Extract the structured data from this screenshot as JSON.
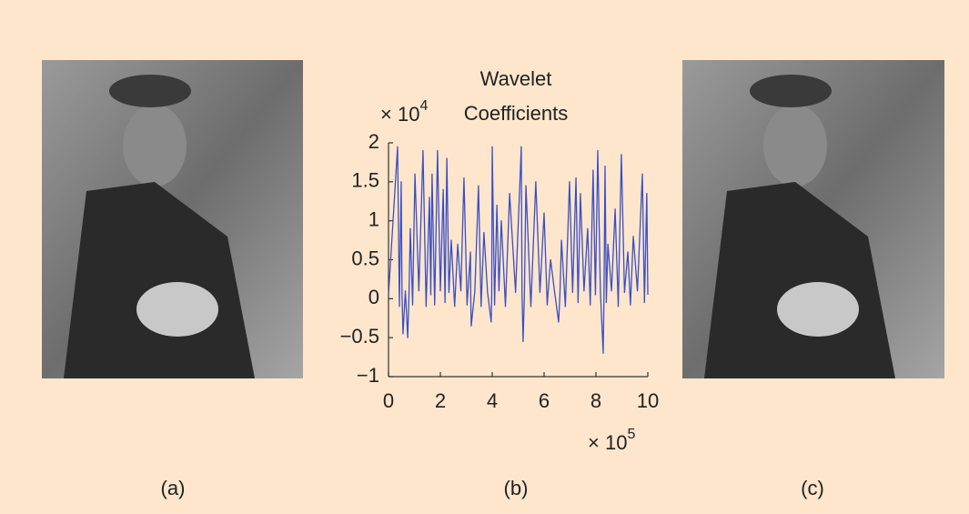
{
  "chart_data": {
    "type": "line",
    "title": [
      "Wavelet",
      "Coefficients"
    ],
    "x_multiplier": {
      "base": "× 10",
      "exponent": "5"
    },
    "y_multiplier": {
      "base": "× 10",
      "exponent": "4"
    },
    "xlim": [
      0,
      10
    ],
    "xticks": [
      0,
      2,
      4,
      6,
      8,
      10
    ],
    "ylim": [
      -1,
      2
    ],
    "yticks": [
      {
        "value": -1,
        "label": "−1"
      },
      {
        "value": -0.5,
        "label": "−0.5"
      },
      0,
      0.5,
      1,
      1.5,
      2
    ],
    "grid": false,
    "series": [
      {
        "color": "#3b4fc2",
        "x": [
          0,
          0.35,
          0.42,
          0.49,
          0.52,
          0.56,
          0.65,
          0.74,
          0.79,
          0.84,
          0.93,
          1.02,
          1.17,
          1.33,
          1.45,
          1.58,
          1.63,
          1.68,
          1.78,
          1.89,
          2.0,
          2.11,
          2.18,
          2.25,
          2.33,
          2.42,
          2.55,
          2.67,
          2.79,
          2.91,
          3.03,
          3.16,
          3.17,
          3.19,
          3.33,
          3.47,
          3.57,
          3.68,
          3.82,
          3.96,
          3.98,
          4.0,
          4.09,
          4.18,
          4.26,
          4.35,
          4.51,
          4.67,
          4.9,
          5.12,
          5.15,
          5.19,
          5.24,
          5.3,
          5.49,
          5.68,
          5.84,
          6.0,
          6.12,
          6.25,
          6.4,
          6.56,
          6.61,
          6.67,
          6.82,
          6.98,
          7.1,
          7.23,
          7.31,
          7.4,
          7.54,
          7.68,
          7.78,
          7.89,
          7.98,
          8.07,
          8.17,
          8.28,
          8.31,
          8.35,
          8.4,
          8.46,
          8.6,
          8.74,
          8.86,
          8.98,
          9.1,
          9.23,
          9.33,
          9.44,
          9.6,
          9.79,
          9.87,
          9.96,
          10
        ],
        "values": [
          0.05,
          1.95,
          -0.1,
          1.5,
          0.08,
          -0.45,
          0.1,
          -0.5,
          0.05,
          0.9,
          -0.08,
          1.6,
          0.1,
          1.9,
          -0.1,
          1.3,
          0.05,
          1.6,
          -0.08,
          1.9,
          0.1,
          1.4,
          -0.05,
          1.8,
          0.08,
          0.75,
          -0.1,
          0.7,
          0.1,
          1.55,
          -0.08,
          0.6,
          0.05,
          -0.35,
          0.1,
          1.45,
          -0.1,
          0.85,
          0.08,
          -0.3,
          0.05,
          1.95,
          -0.08,
          1.2,
          0.1,
          1.0,
          -0.1,
          1.35,
          0.08,
          1.95,
          0.05,
          -0.55,
          0.05,
          1.45,
          -0.1,
          1.5,
          0.08,
          1.1,
          -0.08,
          0.5,
          0.1,
          -0.3,
          0.05,
          0.75,
          -0.1,
          1.5,
          0.08,
          1.55,
          -0.05,
          1.35,
          0.1,
          0.9,
          -0.08,
          1.65,
          0.05,
          1.9,
          0.1,
          -0.7,
          0.05,
          1.7,
          -0.05,
          0.7,
          0.1,
          1.15,
          -0.1,
          1.85,
          0.08,
          0.6,
          -0.08,
          0.8,
          0.1,
          1.6,
          -0.05,
          1.35,
          0.05
        ]
      }
    ]
  },
  "panels": {
    "captions": [
      "(a)",
      "(b)",
      "(c)"
    ]
  }
}
